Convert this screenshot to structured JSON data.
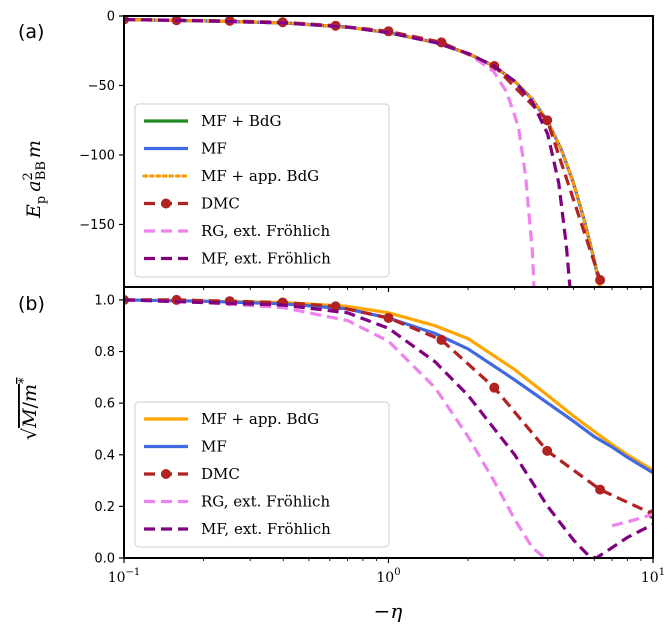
{
  "chart_data": [
    {
      "type": "line",
      "panel_label": "(a)",
      "ylabel": "E_p a_BB^2 m",
      "ylabel_parts": {
        "base": "E",
        "sub1": "p",
        "a": "a",
        "sup": "2",
        "sub2": "BB",
        "m": "m"
      },
      "x_scale": "log",
      "xlim": [
        0.1,
        10
      ],
      "ylim": [
        -195,
        0
      ],
      "yticks": [
        0,
        -50,
        -100,
        -150
      ],
      "ytick_labels": [
        "0",
        "−50",
        "−100",
        "−150"
      ],
      "grid": false,
      "legend_position": "lower-left",
      "series": [
        {
          "name": "MF + BdG",
          "color": "#228b22",
          "style": "solid",
          "x": [
            0.1,
            0.2,
            0.4,
            0.7,
            1.0,
            1.5,
            2.0,
            2.5,
            3.0,
            3.5,
            4.0,
            4.5,
            5.0,
            5.5,
            6.0,
            6.3
          ],
          "y": [
            -2.5,
            -3.5,
            -5,
            -8,
            -12,
            -19,
            -27,
            -36,
            -47,
            -60,
            -76,
            -96,
            -120,
            -147,
            -176,
            -195
          ]
        },
        {
          "name": "MF",
          "color": "#4169e1",
          "style": "solid",
          "x": [
            0.1,
            0.2,
            0.4,
            0.7,
            1.0,
            1.5,
            2.0,
            2.5,
            3.0,
            3.5,
            4.0,
            4.5,
            5.0,
            5.5,
            6.0,
            6.3
          ],
          "y": [
            -2.5,
            -3.5,
            -5,
            -8,
            -12,
            -19,
            -27,
            -36,
            -47,
            -60,
            -76,
            -96,
            -120,
            -147,
            -176,
            -195
          ]
        },
        {
          "name": "MF + app. BdG",
          "color": "#ff9900",
          "style": "dotted",
          "x": [
            0.1,
            0.2,
            0.4,
            0.7,
            1.0,
            1.5,
            2.0,
            2.5,
            3.0,
            3.5,
            4.0,
            4.5,
            5.0,
            5.5,
            6.0,
            6.3
          ],
          "y": [
            -2.5,
            -3.5,
            -5,
            -8,
            -12,
            -19,
            -27,
            -36,
            -47,
            -60,
            -76,
            -96,
            -120,
            -147,
            -176,
            -195
          ]
        },
        {
          "name": "DMC",
          "color": "#b22222",
          "style": "dashed-markers",
          "x": [
            0.1,
            0.158,
            0.251,
            0.398,
            0.631,
            1.0,
            1.585,
            2.512,
            3.981,
            6.31
          ],
          "y": [
            -2.5,
            -3,
            -3.5,
            -4.5,
            -7,
            -11,
            -19,
            -36,
            -75,
            -190
          ]
        },
        {
          "name": "RG, ext. Fröhlich",
          "color": "#ee82ee",
          "style": "dashed",
          "x": [
            0.1,
            0.2,
            0.4,
            0.7,
            1.0,
            1.5,
            2.0,
            2.5,
            2.8,
            3.1,
            3.3,
            3.5,
            3.55
          ],
          "y": [
            -2.5,
            -3.5,
            -5,
            -8,
            -12,
            -19,
            -27,
            -40,
            -55,
            -80,
            -115,
            -170,
            -195
          ]
        },
        {
          "name": "MF, ext. Fröhlich",
          "color": "#800080",
          "style": "dashed",
          "x": [
            0.1,
            0.2,
            0.4,
            0.7,
            1.0,
            1.5,
            2.0,
            2.5,
            3.0,
            3.5,
            4.0,
            4.4,
            4.7,
            4.85
          ],
          "y": [
            -2.5,
            -3.5,
            -5,
            -8,
            -12,
            -19,
            -27,
            -36,
            -47,
            -62,
            -85,
            -120,
            -165,
            -195
          ]
        }
      ]
    },
    {
      "type": "line",
      "panel_label": "(b)",
      "ylabel": "√(M/m*)",
      "ylabel_parts": {
        "root": "√",
        "M": "M",
        "slash": "/",
        "m": "m",
        "star": "*"
      },
      "xlabel": "−η",
      "x_scale": "log",
      "xlim": [
        0.1,
        10
      ],
      "ylim": [
        0.0,
        1.05
      ],
      "yticks": [
        0.0,
        0.2,
        0.4,
        0.6,
        0.8,
        1.0
      ],
      "ytick_labels": [
        "0.0",
        "0.2",
        "0.4",
        "0.6",
        "0.8",
        "1.0"
      ],
      "xtick_labels": [
        {
          "base": "10",
          "exp": "−1"
        },
        {
          "base": "10",
          "exp": "0"
        },
        {
          "base": "10",
          "exp": "1"
        }
      ],
      "grid": false,
      "legend_position": "lower-left",
      "series": [
        {
          "name": "MF + app. BdG",
          "color": "#ffa500",
          "style": "solid",
          "x": [
            0.1,
            0.2,
            0.4,
            0.7,
            1.0,
            1.5,
            2.0,
            3.0,
            4.0,
            5.0,
            6.0,
            7.0,
            8.0,
            10.0
          ],
          "y": [
            1.0,
            0.995,
            0.99,
            0.975,
            0.95,
            0.9,
            0.85,
            0.73,
            0.63,
            0.55,
            0.49,
            0.44,
            0.4,
            0.34
          ]
        },
        {
          "name": "MF",
          "color": "#4169e1",
          "style": "solid",
          "x": [
            0.1,
            0.2,
            0.4,
            0.7,
            1.0,
            1.5,
            2.0,
            3.0,
            4.0,
            5.0,
            6.0,
            7.0,
            8.0,
            10.0
          ],
          "y": [
            1.0,
            0.995,
            0.985,
            0.965,
            0.93,
            0.87,
            0.81,
            0.69,
            0.6,
            0.53,
            0.47,
            0.43,
            0.39,
            0.33
          ]
        },
        {
          "name": "DMC",
          "color": "#b22222",
          "style": "dashed-markers",
          "x": [
            0.1,
            0.158,
            0.251,
            0.398,
            0.631,
            1.0,
            1.585,
            2.512,
            3.981,
            6.31,
            10.0
          ],
          "y": [
            1.0,
            1.0,
            0.995,
            0.99,
            0.975,
            0.93,
            0.845,
            0.66,
            0.415,
            0.265,
            0.17
          ]
        },
        {
          "name": "RG, ext. Fröhlich",
          "color": "#ee82ee",
          "style": "dashed",
          "x": [
            0.1,
            0.2,
            0.4,
            0.7,
            1.0,
            1.5,
            2.0,
            2.5,
            3.0,
            3.5,
            3.9
          ],
          "y": [
            1.0,
            0.99,
            0.97,
            0.92,
            0.84,
            0.66,
            0.47,
            0.3,
            0.15,
            0.04,
            0.0
          ]
        },
        {
          "name": "RG, ext. Fröhlich (upper branch)",
          "color": "#ee82ee",
          "style": "dashed",
          "x": [
            7.0,
            8.0,
            9.0,
            10.0
          ],
          "y": [
            0.125,
            0.14,
            0.155,
            0.17
          ]
        },
        {
          "name": "MF, ext. Fröhlich",
          "color": "#800080",
          "style": "dashed",
          "x": [
            0.1,
            0.2,
            0.4,
            0.7,
            1.0,
            1.5,
            2.0,
            3.0,
            4.0,
            5.0,
            5.7,
            6.1,
            7.0,
            8.0,
            10.0
          ],
          "y": [
            1.0,
            0.99,
            0.98,
            0.95,
            0.89,
            0.76,
            0.63,
            0.4,
            0.2,
            0.07,
            0.01,
            0.0,
            0.04,
            0.08,
            0.13
          ]
        }
      ]
    }
  ],
  "legend_a": [
    {
      "label": "MF + BdG",
      "color": "#228b22",
      "style": "solid"
    },
    {
      "label": "MF",
      "color": "#4169e1",
      "style": "solid"
    },
    {
      "label": "MF + app. BdG",
      "color": "#ff9900",
      "style": "dotted"
    },
    {
      "label": "DMC",
      "color": "#b22222",
      "style": "dashed-markers"
    },
    {
      "label": "RG, ext. Fröhlich",
      "color": "#ee82ee",
      "style": "dashed"
    },
    {
      "label": "MF, ext. Fröhlich",
      "color": "#800080",
      "style": "dashed"
    }
  ],
  "legend_b": [
    {
      "label": "MF + app. BdG",
      "color": "#ffa500",
      "style": "solid"
    },
    {
      "label": "MF",
      "color": "#4169e1",
      "style": "solid"
    },
    {
      "label": "DMC",
      "color": "#b22222",
      "style": "dashed-markers"
    },
    {
      "label": "RG, ext. Fröhlich",
      "color": "#ee82ee",
      "style": "dashed"
    },
    {
      "label": "MF, ext. Fröhlich",
      "color": "#800080",
      "style": "dashed"
    }
  ]
}
